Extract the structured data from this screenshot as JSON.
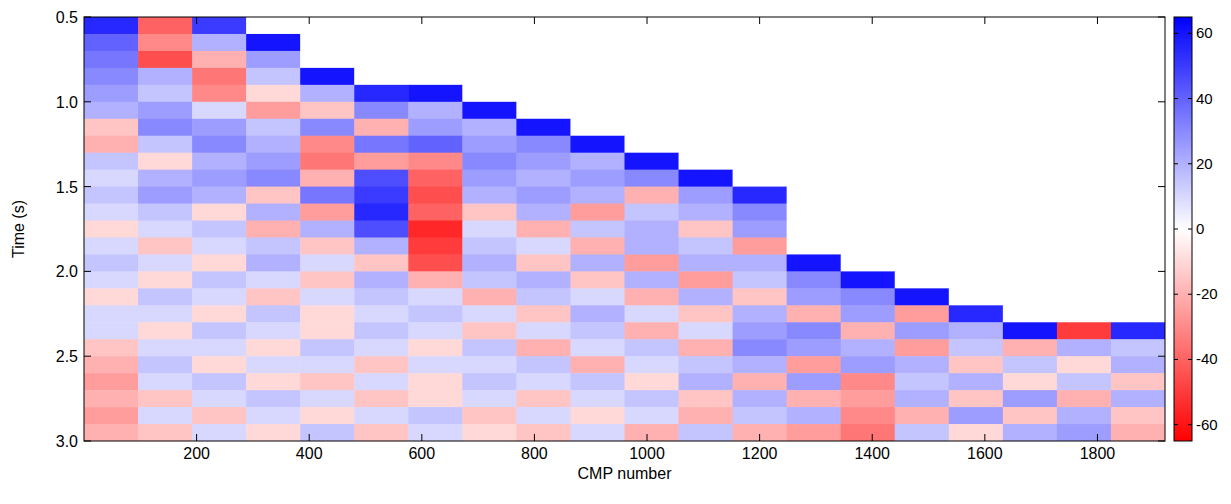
{
  "chart_data": {
    "type": "heatmap",
    "xlabel": "CMP number",
    "ylabel": "Time (s)",
    "xlim": [
      0,
      1920
    ],
    "xticks": [
      200,
      400,
      600,
      800,
      1000,
      1200,
      1400,
      1600,
      1800
    ],
    "ylim": [
      0.5,
      3.0
    ],
    "yticks": [
      0.5,
      {
        "value": 1,
        "label": "1.0"
      },
      1.5,
      {
        "value": 2,
        "label": "2.0"
      },
      2.5,
      {
        "value": 3,
        "label": "3.0"
      }
    ],
    "x": [
      48,
      144,
      240,
      336,
      432,
      528,
      624,
      720,
      816,
      912,
      1008,
      1104,
      1200,
      1296,
      1392,
      1488,
      1584,
      1680,
      1776,
      1872
    ],
    "y": [
      0.55,
      0.65,
      0.75,
      0.85,
      0.95,
      1.05,
      1.15,
      1.25,
      1.35,
      1.45,
      1.55,
      1.65,
      1.75,
      1.85,
      1.95,
      2.05,
      2.15,
      2.25,
      2.35,
      2.45,
      2.55,
      2.65,
      2.75,
      2.85,
      2.95
    ],
    "cells": [
      [
        55,
        -40,
        50,
        0,
        0,
        0,
        0,
        0,
        0,
        0,
        0,
        0,
        0,
        0,
        0,
        0,
        0,
        0,
        0,
        0
      ],
      [
        40,
        -30,
        20,
        60,
        0,
        0,
        0,
        0,
        0,
        0,
        0,
        0,
        0,
        0,
        0,
        0,
        0,
        0,
        0,
        0
      ],
      [
        35,
        -45,
        -20,
        25,
        0,
        0,
        0,
        0,
        0,
        0,
        0,
        0,
        0,
        0,
        0,
        0,
        0,
        0,
        0,
        0
      ],
      [
        30,
        20,
        -35,
        15,
        60,
        0,
        0,
        0,
        0,
        0,
        0,
        0,
        0,
        0,
        0,
        0,
        0,
        0,
        0,
        0
      ],
      [
        25,
        15,
        -30,
        -10,
        20,
        55,
        60,
        0,
        0,
        0,
        0,
        0,
        0,
        0,
        0,
        0,
        0,
        0,
        0,
        0
      ],
      [
        20,
        25,
        10,
        -25,
        -15,
        30,
        20,
        60,
        0,
        0,
        0,
        0,
        0,
        0,
        0,
        0,
        0,
        0,
        0,
        0
      ],
      [
        -15,
        30,
        25,
        15,
        30,
        -20,
        25,
        20,
        60,
        0,
        0,
        0,
        0,
        0,
        0,
        0,
        0,
        0,
        0,
        0
      ],
      [
        -20,
        15,
        30,
        20,
        -30,
        35,
        40,
        25,
        30,
        60,
        0,
        0,
        0,
        0,
        0,
        0,
        0,
        0,
        0,
        0
      ],
      [
        15,
        -10,
        20,
        25,
        -35,
        -25,
        -30,
        30,
        25,
        20,
        60,
        0,
        0,
        0,
        0,
        0,
        0,
        0,
        0,
        0
      ],
      [
        10,
        20,
        25,
        30,
        -20,
        45,
        -40,
        25,
        20,
        25,
        30,
        60,
        0,
        0,
        0,
        0,
        0,
        0,
        0,
        0
      ],
      [
        15,
        25,
        20,
        -15,
        35,
        50,
        -45,
        20,
        25,
        20,
        -20,
        25,
        55,
        0,
        0,
        0,
        0,
        0,
        0,
        0
      ],
      [
        10,
        15,
        -10,
        20,
        -25,
        55,
        -40,
        -15,
        20,
        -25,
        15,
        20,
        30,
        0,
        0,
        0,
        0,
        0,
        0,
        0
      ],
      [
        -10,
        10,
        15,
        -20,
        20,
        45,
        -55,
        10,
        -20,
        15,
        20,
        -15,
        25,
        0,
        0,
        0,
        0,
        0,
        0,
        0
      ],
      [
        10,
        -15,
        10,
        15,
        -15,
        20,
        -50,
        15,
        10,
        -20,
        20,
        15,
        -25,
        0,
        0,
        0,
        0,
        0,
        0,
        0
      ],
      [
        15,
        10,
        -10,
        20,
        10,
        -15,
        -45,
        20,
        -15,
        20,
        -25,
        20,
        20,
        60,
        0,
        0,
        0,
        0,
        0,
        0
      ],
      [
        10,
        -10,
        15,
        10,
        -15,
        20,
        -20,
        15,
        20,
        -15,
        20,
        -25,
        15,
        30,
        60,
        0,
        0,
        0,
        0,
        0
      ],
      [
        -10,
        15,
        10,
        -15,
        10,
        15,
        10,
        -20,
        15,
        10,
        -20,
        20,
        -15,
        25,
        30,
        60,
        0,
        0,
        0,
        0
      ],
      [
        10,
        10,
        -10,
        15,
        -10,
        10,
        15,
        10,
        -15,
        20,
        10,
        -15,
        20,
        -20,
        25,
        -25,
        55,
        0,
        0,
        0
      ],
      [
        10,
        -10,
        15,
        10,
        -10,
        15,
        10,
        -15,
        10,
        15,
        -20,
        10,
        25,
        30,
        -20,
        25,
        20,
        60,
        -50,
        55
      ],
      [
        -15,
        10,
        10,
        -10,
        15,
        10,
        -10,
        15,
        -20,
        10,
        15,
        -20,
        30,
        25,
        20,
        -25,
        15,
        -20,
        20,
        15
      ],
      [
        -20,
        15,
        -10,
        10,
        10,
        -15,
        10,
        10,
        15,
        -20,
        10,
        15,
        20,
        -25,
        25,
        20,
        -15,
        15,
        -10,
        20
      ],
      [
        -25,
        10,
        15,
        -10,
        -15,
        10,
        -10,
        15,
        10,
        15,
        -10,
        20,
        -20,
        25,
        -30,
        15,
        20,
        -10,
        15,
        -15
      ],
      [
        -20,
        -15,
        10,
        15,
        10,
        -15,
        -10,
        10,
        -15,
        10,
        15,
        -15,
        20,
        -20,
        -25,
        20,
        -15,
        25,
        -20,
        20
      ],
      [
        -25,
        10,
        -15,
        10,
        -10,
        10,
        15,
        -15,
        10,
        -10,
        10,
        -20,
        15,
        20,
        -30,
        -20,
        25,
        -15,
        20,
        -15
      ],
      [
        -20,
        -15,
        10,
        -10,
        15,
        -15,
        10,
        -10,
        -15,
        10,
        -20,
        15,
        -20,
        -25,
        -35,
        15,
        -10,
        20,
        25,
        -20
      ]
    ],
    "colorbar": {
      "range": [
        -65,
        65
      ],
      "ticks": [
        -60,
        -40,
        -20,
        0,
        20,
        40,
        60
      ]
    }
  }
}
